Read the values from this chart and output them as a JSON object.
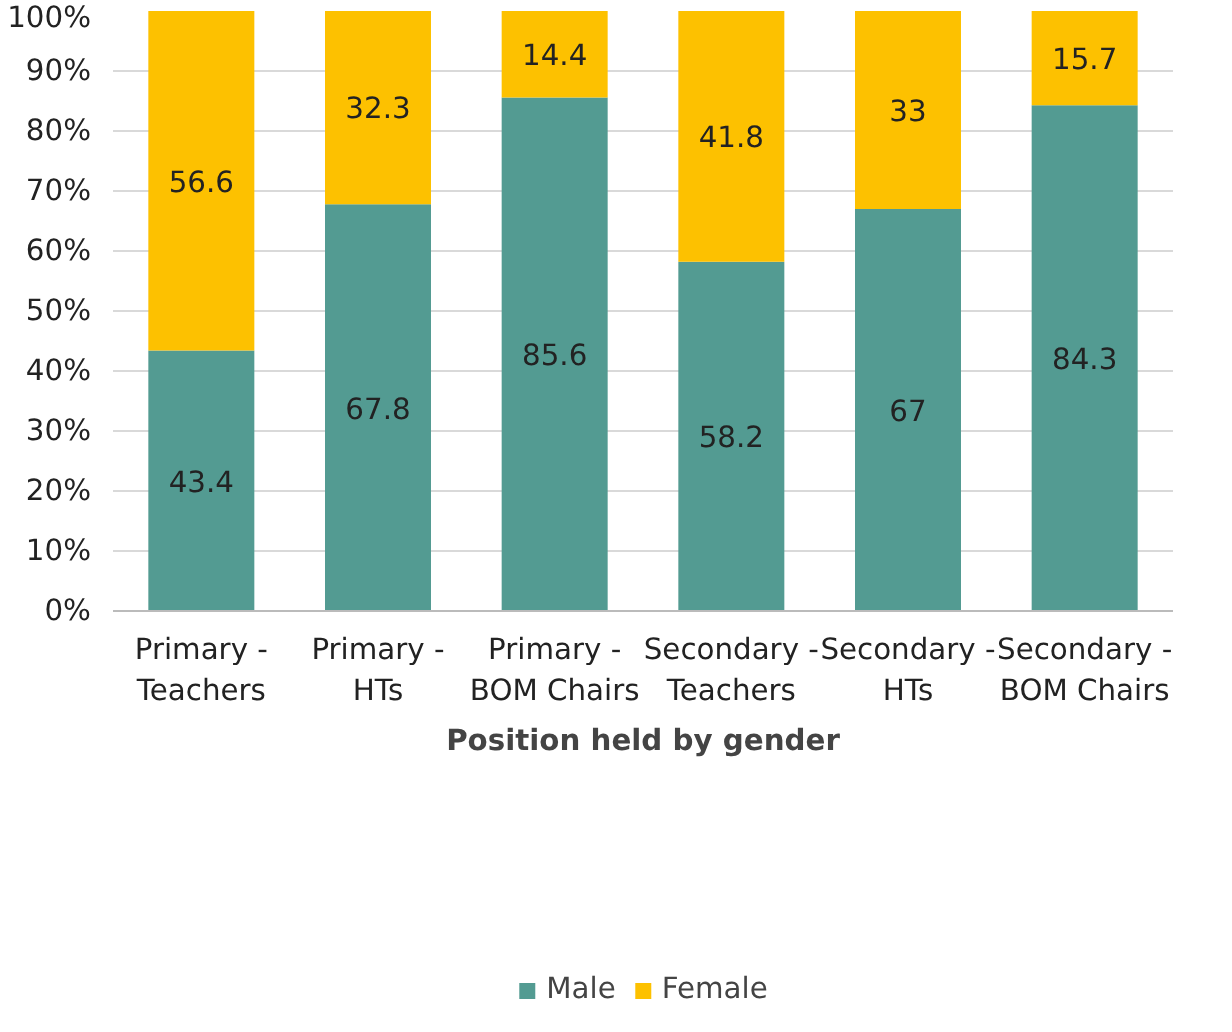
{
  "chart_data": {
    "type": "bar",
    "stacked": true,
    "xlabel": "Position held by gender",
    "categories": [
      "Primary - Teachers",
      "Primary - HTs",
      "Primary - BOM Chairs",
      "Secondary - Teachers",
      "Secondary - HTs",
      "Secondary - BOM Chairs"
    ],
    "series": [
      {
        "name": "Male",
        "color": "#539b92",
        "values": [
          43.4,
          67.8,
          85.6,
          58.2,
          67,
          84.3
        ]
      },
      {
        "name": "Female",
        "color": "#fdc100",
        "values": [
          56.6,
          32.3,
          14.4,
          41.8,
          33,
          15.7
        ]
      }
    ],
    "ylim": [
      0,
      100
    ],
    "yticks": [
      {
        "value": 0,
        "label": "0%"
      },
      {
        "value": 10,
        "label": "10%"
      },
      {
        "value": 20,
        "label": "20%"
      },
      {
        "value": 30,
        "label": "30%"
      },
      {
        "value": 40,
        "label": "40%"
      },
      {
        "value": 50,
        "label": "50%"
      },
      {
        "value": 60,
        "label": "60%"
      },
      {
        "value": 70,
        "label": "70%"
      },
      {
        "value": 80,
        "label": "80%"
      },
      {
        "value": 90,
        "label": "90%"
      },
      {
        "value": 100,
        "label": "100%"
      }
    ],
    "grid": "y",
    "legend": "bottom",
    "data_labels": true
  }
}
